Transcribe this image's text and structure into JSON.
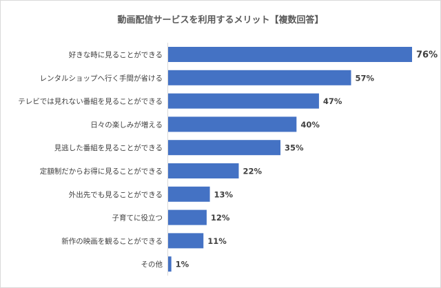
{
  "chart_data": {
    "type": "bar",
    "orientation": "horizontal",
    "title": "動画配信サービスを利用するメリット【複数回答】",
    "categories": [
      "好きな時に見ることができる",
      "レンタルショップへ行く手間が省ける",
      "テレビでは見れない番組を見ることができる",
      "日々の楽しみが増える",
      "見逃した番組を見ることができる",
      "定額制だからお得に見ることができる",
      "外出先でも見ることができる",
      "子育てに役立つ",
      "新作の映画を観ることができる",
      "その他"
    ],
    "values": [
      76,
      57,
      47,
      40,
      35,
      22,
      13,
      12,
      11,
      1
    ],
    "value_labels": [
      "76%",
      "57%",
      "47%",
      "40%",
      "35%",
      "22%",
      "13%",
      "12%",
      "11%",
      "1%"
    ],
    "xlabel": "",
    "ylabel": "",
    "xlim": [
      0,
      76
    ],
    "grid": false,
    "legend": "none",
    "colors": {
      "bar": "#4472c4",
      "axis": "#d9d9d9",
      "text": "#404040"
    }
  }
}
